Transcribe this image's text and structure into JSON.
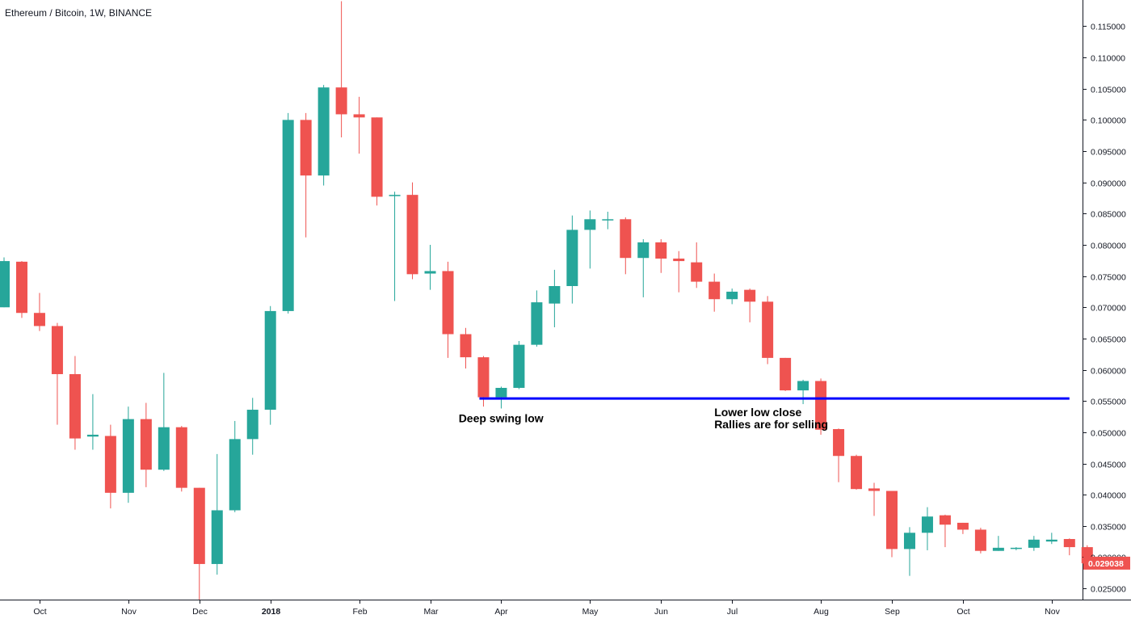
{
  "header": {
    "title": "Ethereum / Bitcoin, 1W, BINANCE"
  },
  "colors": {
    "up": "#26a69a",
    "down": "#ef5350",
    "level_line": "#0000ff",
    "price_tag": "#ef5350",
    "axis_text": "#131722",
    "border": "#131722"
  },
  "chart_data": {
    "type": "candlestick",
    "title": "Ethereum / Bitcoin, 1W, BINANCE",
    "ylim": [
      0.0232,
      0.1192
    ],
    "y_ticks": [
      {
        "value": 0.025,
        "label": "0.025000"
      },
      {
        "value": 0.03,
        "label": "0.030000"
      },
      {
        "value": 0.035,
        "label": "0.035000"
      },
      {
        "value": 0.04,
        "label": "0.040000"
      },
      {
        "value": 0.045,
        "label": "0.045000"
      },
      {
        "value": 0.05,
        "label": "0.050000"
      },
      {
        "value": 0.055,
        "label": "0.055000"
      },
      {
        "value": 0.06,
        "label": "0.060000"
      },
      {
        "value": 0.065,
        "label": "0.065000"
      },
      {
        "value": 0.07,
        "label": "0.070000"
      },
      {
        "value": 0.075,
        "label": "0.075000"
      },
      {
        "value": 0.08,
        "label": "0.080000"
      },
      {
        "value": 0.085,
        "label": "0.085000"
      },
      {
        "value": 0.09,
        "label": "0.090000"
      },
      {
        "value": 0.095,
        "label": "0.095000"
      },
      {
        "value": 0.1,
        "label": "0.100000"
      },
      {
        "value": 0.105,
        "label": "0.105000"
      },
      {
        "value": 0.11,
        "label": "0.110000"
      },
      {
        "value": 0.115,
        "label": "0.115000"
      }
    ],
    "x_ticks": [
      {
        "index": 2,
        "label": "Oct"
      },
      {
        "index": 7,
        "label": "Nov"
      },
      {
        "index": 11,
        "label": "Dec"
      },
      {
        "index": 15,
        "label": "2018"
      },
      {
        "index": 20,
        "label": "Feb"
      },
      {
        "index": 24,
        "label": "Mar"
      },
      {
        "index": 28,
        "label": "Apr"
      },
      {
        "index": 33,
        "label": "May"
      },
      {
        "index": 37,
        "label": "Jun"
      },
      {
        "index": 41,
        "label": "Jul"
      },
      {
        "index": 46,
        "label": "Aug"
      },
      {
        "index": 50,
        "label": "Sep"
      },
      {
        "index": 54,
        "label": "Oct"
      },
      {
        "index": 59,
        "label": "Nov"
      }
    ],
    "candles": [
      {
        "o": 0.07,
        "h": 0.078,
        "l": 0.07,
        "c": 0.0774
      },
      {
        "o": 0.0773,
        "h": 0.0774,
        "l": 0.0683,
        "c": 0.0691
      },
      {
        "o": 0.0691,
        "h": 0.0723,
        "l": 0.0662,
        "c": 0.067
      },
      {
        "o": 0.067,
        "h": 0.0675,
        "l": 0.0512,
        "c": 0.0593
      },
      {
        "o": 0.0593,
        "h": 0.0622,
        "l": 0.0472,
        "c": 0.049
      },
      {
        "o": 0.0493,
        "h": 0.0561,
        "l": 0.0472,
        "c": 0.0496
      },
      {
        "o": 0.0494,
        "h": 0.0512,
        "l": 0.0378,
        "c": 0.0403
      },
      {
        "o": 0.0403,
        "h": 0.0541,
        "l": 0.0387,
        "c": 0.0521
      },
      {
        "o": 0.0521,
        "h": 0.0547,
        "l": 0.0412,
        "c": 0.044
      },
      {
        "o": 0.044,
        "h": 0.0595,
        "l": 0.0438,
        "c": 0.0508
      },
      {
        "o": 0.0508,
        "h": 0.051,
        "l": 0.0405,
        "c": 0.0411
      },
      {
        "o": 0.0411,
        "h": 0.0411,
        "l": 0.0232,
        "c": 0.0289
      },
      {
        "o": 0.0289,
        "h": 0.0465,
        "l": 0.0272,
        "c": 0.0375
      },
      {
        "o": 0.0375,
        "h": 0.0518,
        "l": 0.0372,
        "c": 0.0489
      },
      {
        "o": 0.0489,
        "h": 0.0555,
        "l": 0.0464,
        "c": 0.0536
      },
      {
        "o": 0.0536,
        "h": 0.0702,
        "l": 0.0512,
        "c": 0.0694
      },
      {
        "o": 0.0694,
        "h": 0.1011,
        "l": 0.069,
        "c": 0.1
      },
      {
        "o": 0.1,
        "h": 0.1011,
        "l": 0.0812,
        "c": 0.0911
      },
      {
        "o": 0.0911,
        "h": 0.1056,
        "l": 0.0895,
        "c": 0.1052
      },
      {
        "o": 0.1052,
        "h": 0.119,
        "l": 0.0972,
        "c": 0.1009
      },
      {
        "o": 0.1009,
        "h": 0.1037,
        "l": 0.0946,
        "c": 0.1004
      },
      {
        "o": 0.1004,
        "h": 0.1004,
        "l": 0.0863,
        "c": 0.0877
      },
      {
        "o": 0.0878,
        "h": 0.0885,
        "l": 0.071,
        "c": 0.088
      },
      {
        "o": 0.088,
        "h": 0.09,
        "l": 0.0745,
        "c": 0.0753
      },
      {
        "o": 0.0754,
        "h": 0.08,
        "l": 0.0728,
        "c": 0.0758
      },
      {
        "o": 0.0758,
        "h": 0.0773,
        "l": 0.0619,
        "c": 0.0657
      },
      {
        "o": 0.0657,
        "h": 0.0667,
        "l": 0.0602,
        "c": 0.062
      },
      {
        "o": 0.062,
        "h": 0.0622,
        "l": 0.0541,
        "c": 0.0556
      },
      {
        "o": 0.0556,
        "h": 0.0573,
        "l": 0.0538,
        "c": 0.0571
      },
      {
        "o": 0.0571,
        "h": 0.0646,
        "l": 0.0569,
        "c": 0.064
      },
      {
        "o": 0.064,
        "h": 0.0727,
        "l": 0.0637,
        "c": 0.0708
      },
      {
        "o": 0.0706,
        "h": 0.076,
        "l": 0.0668,
        "c": 0.0734
      },
      {
        "o": 0.0734,
        "h": 0.0847,
        "l": 0.0706,
        "c": 0.0824
      },
      {
        "o": 0.0824,
        "h": 0.0855,
        "l": 0.0762,
        "c": 0.0841
      },
      {
        "o": 0.0841,
        "h": 0.0853,
        "l": 0.0825,
        "c": 0.0841
      },
      {
        "o": 0.0841,
        "h": 0.0844,
        "l": 0.0753,
        "c": 0.0779
      },
      {
        "o": 0.0779,
        "h": 0.0809,
        "l": 0.0716,
        "c": 0.0804
      },
      {
        "o": 0.0804,
        "h": 0.0809,
        "l": 0.0755,
        "c": 0.0778
      },
      {
        "o": 0.0778,
        "h": 0.079,
        "l": 0.0724,
        "c": 0.0774
      },
      {
        "o": 0.0772,
        "h": 0.0804,
        "l": 0.0731,
        "c": 0.0741
      },
      {
        "o": 0.0741,
        "h": 0.0754,
        "l": 0.0693,
        "c": 0.0713
      },
      {
        "o": 0.0713,
        "h": 0.073,
        "l": 0.0705,
        "c": 0.0725
      },
      {
        "o": 0.0728,
        "h": 0.073,
        "l": 0.0676,
        "c": 0.0709
      },
      {
        "o": 0.0709,
        "h": 0.0718,
        "l": 0.0609,
        "c": 0.0619
      },
      {
        "o": 0.0619,
        "h": 0.0619,
        "l": 0.0566,
        "c": 0.0567
      },
      {
        "o": 0.0567,
        "h": 0.0584,
        "l": 0.0545,
        "c": 0.0582
      },
      {
        "o": 0.0582,
        "h": 0.0586,
        "l": 0.0496,
        "c": 0.0504
      },
      {
        "o": 0.0505,
        "h": 0.0506,
        "l": 0.042,
        "c": 0.0462
      },
      {
        "o": 0.0462,
        "h": 0.0464,
        "l": 0.0408,
        "c": 0.0409
      },
      {
        "o": 0.041,
        "h": 0.0419,
        "l": 0.0366,
        "c": 0.0406
      },
      {
        "o": 0.0406,
        "h": 0.0406,
        "l": 0.03,
        "c": 0.0313
      },
      {
        "o": 0.0313,
        "h": 0.0348,
        "l": 0.027,
        "c": 0.0339
      },
      {
        "o": 0.0339,
        "h": 0.038,
        "l": 0.0311,
        "c": 0.0365
      },
      {
        "o": 0.0367,
        "h": 0.0368,
        "l": 0.0316,
        "c": 0.0352
      },
      {
        "o": 0.0355,
        "h": 0.0355,
        "l": 0.0337,
        "c": 0.0344
      },
      {
        "o": 0.0344,
        "h": 0.0347,
        "l": 0.0306,
        "c": 0.031
      },
      {
        "o": 0.031,
        "h": 0.0334,
        "l": 0.031,
        "c": 0.0315
      },
      {
        "o": 0.0314,
        "h": 0.0316,
        "l": 0.0311,
        "c": 0.0315
      },
      {
        "o": 0.0315,
        "h": 0.0334,
        "l": 0.031,
        "c": 0.0328
      },
      {
        "o": 0.0325,
        "h": 0.0339,
        "l": 0.0321,
        "c": 0.0328
      },
      {
        "o": 0.0329,
        "h": 0.033,
        "l": 0.0303,
        "c": 0.0316
      },
      {
        "o": 0.0316,
        "h": 0.0319,
        "l": 0.0283,
        "c": 0.029
      }
    ],
    "last_price": {
      "value": 0.029038,
      "label": "0.029038"
    },
    "horizontal_line": {
      "value": 0.0554,
      "from_index": 27,
      "to_index": 60
    },
    "annotations": [
      {
        "text": "Deep swing low",
        "index": 25.6,
        "value": 0.0516
      },
      {
        "text": "Lower low close",
        "index": 40.0,
        "value": 0.0526
      },
      {
        "text": "Rallies are for selling",
        "index": 40.0,
        "value": 0.0506
      }
    ]
  }
}
